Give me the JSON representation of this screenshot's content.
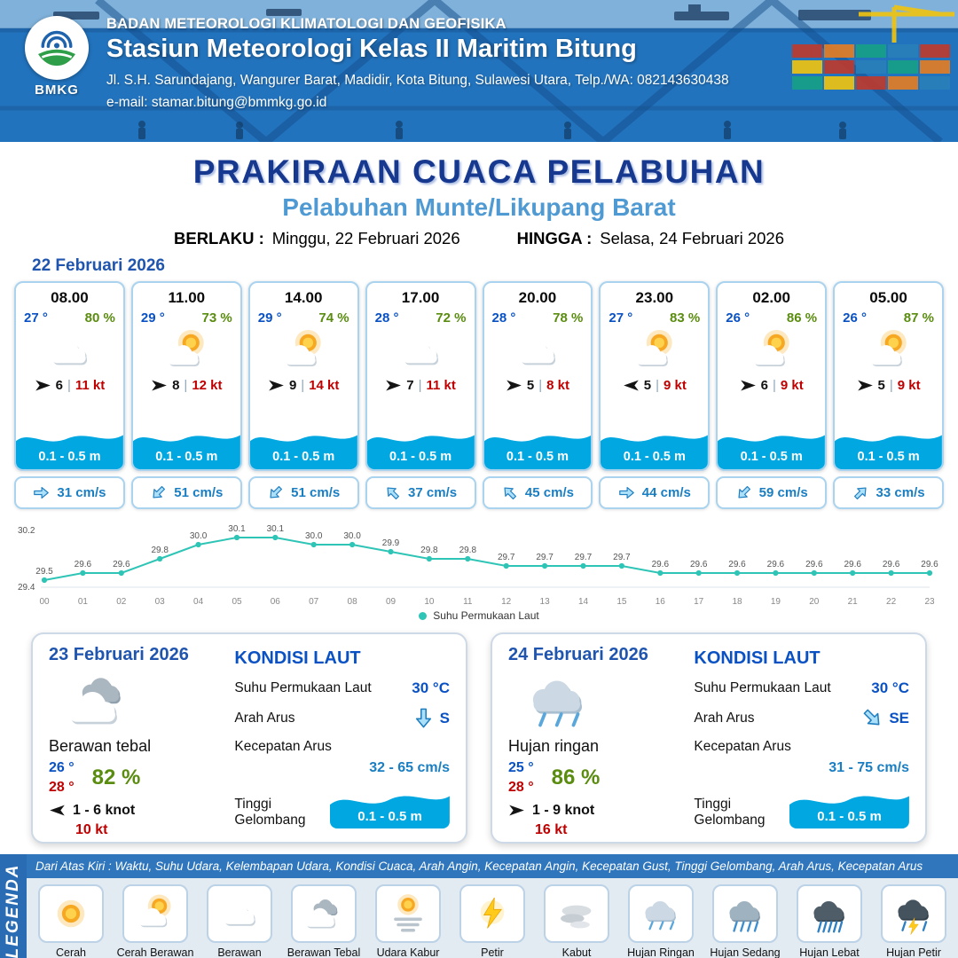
{
  "colors": {
    "header_blue": "#1d63ad",
    "title_blue": "#17388f",
    "subtitle_blue": "#4f9ad2",
    "temp_blue": "#0a52c4",
    "temp_red": "#c00000",
    "humidity_green": "#5a8c10",
    "gust_red": "#c00000",
    "wave_blue": "#00a7e1",
    "current_blue": "#1a7ec2",
    "chart_line": "#2ec4b6"
  },
  "ui": {
    "divider": "|"
  },
  "header": {
    "logo": "BMKG",
    "agency": "BADAN METEOROLOGI KLIMATOLOGI DAN GEOFISIKA",
    "station": "Stasiun Meteorologi Kelas II Maritim Bitung",
    "address": "Jl. S.H. Sarundajang, Wangurer Barat, Madidir, Kota Bitung, Sulawesi Utara, Telp./WA: 082143630438",
    "email": "e-mail: stamar.bitung@bmmkg.go.id"
  },
  "title": {
    "main": "PRAKIRAAN CUACA PELABUHAN",
    "subtitle": "Pelabuhan Munte/Likupang Barat",
    "valid_from_label": "BERLAKU :",
    "valid_from": "Minggu, 22 Februari 2026",
    "valid_to_label": "HINGGA :",
    "valid_to": "Selasa, 24 Februari 2026"
  },
  "hourly": {
    "date": "22 Februari 2026",
    "cards": [
      {
        "time": "08.00",
        "temp": "27 °",
        "rh": "80 %",
        "icon": "berawan",
        "wind_speed": "6",
        "gust": "11 kt",
        "wind_rot": 0,
        "wave": "0.1 - 0.5 m",
        "current": "31 cm/s",
        "current_rot": 0
      },
      {
        "time": "11.00",
        "temp": "29 °",
        "rh": "73 %",
        "icon": "cerah-berawan",
        "wind_speed": "8",
        "gust": "12 kt",
        "wind_rot": 0,
        "wave": "0.1 - 0.5 m",
        "current": "51 cm/s",
        "current_rot": 135
      },
      {
        "time": "14.00",
        "temp": "29 °",
        "rh": "74 %",
        "icon": "cerah-berawan",
        "wind_speed": "9",
        "gust": "14 kt",
        "wind_rot": 0,
        "wave": "0.1 - 0.5 m",
        "current": "51 cm/s",
        "current_rot": 135
      },
      {
        "time": "17.00",
        "temp": "28 °",
        "rh": "72 %",
        "icon": "berawan",
        "wind_speed": "7",
        "gust": "11 kt",
        "wind_rot": 0,
        "wave": "0.1 - 0.5 m",
        "current": "37 cm/s",
        "current_rot": -135
      },
      {
        "time": "20.00",
        "temp": "28 °",
        "rh": "78 %",
        "icon": "berawan",
        "wind_speed": "5",
        "gust": "8 kt",
        "wind_rot": 0,
        "wave": "0.1 - 0.5 m",
        "current": "45 cm/s",
        "current_rot": -135
      },
      {
        "time": "23.00",
        "temp": "27 °",
        "rh": "83 %",
        "icon": "cerah-berawan",
        "wind_speed": "5",
        "gust": "9 kt",
        "wind_rot": 180,
        "wave": "0.1 - 0.5 m",
        "current": "44 cm/s",
        "current_rot": 0
      },
      {
        "time": "02.00",
        "temp": "26 °",
        "rh": "86 %",
        "icon": "cerah-berawan",
        "wind_speed": "6",
        "gust": "9 kt",
        "wind_rot": 0,
        "wave": "0.1 - 0.5 m",
        "current": "59 cm/s",
        "current_rot": 135
      },
      {
        "time": "05.00",
        "temp": "26 °",
        "rh": "87 %",
        "icon": "cerah-berawan",
        "wind_speed": "5",
        "gust": "9 kt",
        "wind_rot": 0,
        "wave": "0.1 - 0.5 m",
        "current": "33 cm/s",
        "current_rot": -45
      }
    ]
  },
  "chart_data": {
    "type": "line",
    "legend": "Suhu Permukaan Laut",
    "x": [
      "00",
      "01",
      "02",
      "03",
      "04",
      "05",
      "06",
      "07",
      "08",
      "09",
      "10",
      "11",
      "12",
      "13",
      "14",
      "15",
      "16",
      "17",
      "18",
      "19",
      "20",
      "21",
      "22",
      "23"
    ],
    "values": [
      29.5,
      29.6,
      29.6,
      29.8,
      30.0,
      30.1,
      30.1,
      30.0,
      30.0,
      29.9,
      29.8,
      29.8,
      29.7,
      29.7,
      29.7,
      29.7,
      29.6,
      29.6,
      29.6,
      29.6,
      29.6,
      29.6,
      29.6,
      29.6
    ],
    "ylim": [
      29.4,
      30.2
    ],
    "yticks": [
      "30.2",
      "29.4"
    ],
    "grid": false,
    "legend_position": "bottom",
    "line_color": "#2ec4b6",
    "xlabel": "",
    "ylabel": ""
  },
  "sea": {
    "title": "KONDISI LAUT",
    "sst_label": "Suhu Permukaan Laut",
    "dir_label": "Arah Arus",
    "speed_label": "Kecepatan Arus",
    "wave_label": "Tinggi Gelombang"
  },
  "daily": [
    {
      "date": "23 Februari 2026",
      "icon": "berawan-tebal",
      "desc": "Berawan tebal",
      "temp_min": "26 °",
      "temp_max": "28 °",
      "rh": "82 %",
      "wind_rot": 180,
      "wind": "1 - 6 knot",
      "gust": "10 kt",
      "sst": "30 °C",
      "current_dir": "S",
      "current_rot": 90,
      "current_speed": "32 - 65 cm/s",
      "wave": "0.1 - 0.5 m"
    },
    {
      "date": "24 Februari 2026",
      "icon": "hujan-ringan",
      "desc": "Hujan ringan",
      "temp_min": "25 °",
      "temp_max": "28 °",
      "rh": "86 %",
      "wind_rot": 0,
      "wind": "1 - 9 knot",
      "gust": "16 kt",
      "sst": "30 °C",
      "current_dir": "SE",
      "current_rot": 45,
      "current_speed": "31 - 75 cm/s",
      "wave": "0.1 - 0.5 m"
    }
  ],
  "legend": {
    "title": "LEGENDA",
    "note": "Dari Atas Kiri : Waktu, Suhu Udara, Kelembapan Udara, Kondisi Cuaca, Arah Angin, Kecepatan Angin, Kecepatan Gust, Tinggi Gelombang, Arah Arus, Kecepatan Arus",
    "items": [
      {
        "label": "Cerah",
        "icon": "cerah"
      },
      {
        "label": "Cerah Berawan",
        "icon": "cerah-berawan"
      },
      {
        "label": "Berawan",
        "icon": "berawan"
      },
      {
        "label": "Berawan Tebal",
        "icon": "berawan-tebal"
      },
      {
        "label": "Udara Kabur",
        "icon": "udara-kabur"
      },
      {
        "label": "Petir",
        "icon": "petir"
      },
      {
        "label": "Kabut",
        "icon": "kabut"
      },
      {
        "label": "Hujan Ringan",
        "icon": "hujan-ringan"
      },
      {
        "label": "Hujan Sedang",
        "icon": "hujan-sedang"
      },
      {
        "label": "Hujan Lebat",
        "icon": "hujan-lebat"
      },
      {
        "label": "Hujan Petir",
        "icon": "hujan-petir"
      }
    ]
  }
}
